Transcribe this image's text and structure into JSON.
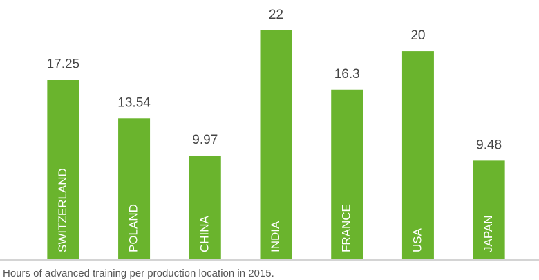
{
  "chart_data": {
    "type": "bar",
    "categories": [
      "SWITZERLAND",
      "POLAND",
      "CHINA",
      "INDIA",
      "FRANCE",
      "USA",
      "JAPAN"
    ],
    "values": [
      17.25,
      13.54,
      9.97,
      22,
      16.3,
      20,
      9.48
    ],
    "color": "#6ab42d",
    "caption": "Hours of advanced training per production location in 2015."
  }
}
